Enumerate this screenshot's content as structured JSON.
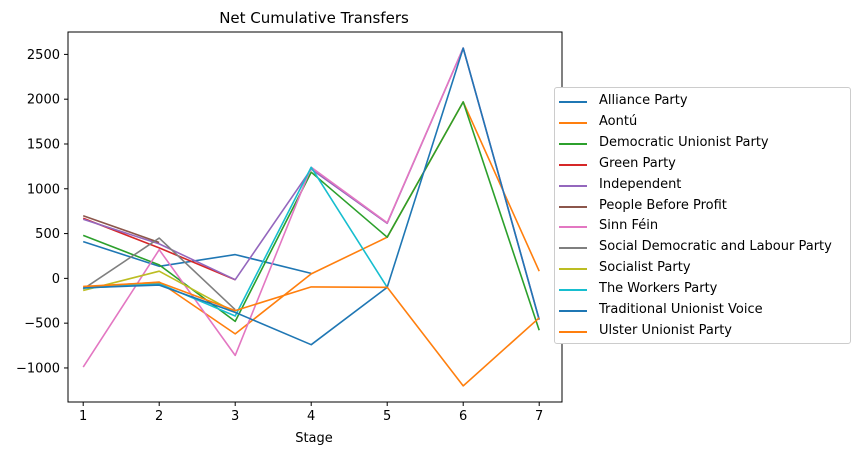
{
  "chart_data": {
    "type": "line",
    "title": "Net Cumulative Transfers",
    "xlabel": "Stage",
    "ylabel": "",
    "x": [
      1,
      2,
      3,
      4,
      5,
      6,
      7
    ],
    "xlim": [
      0.8,
      7.3
    ],
    "ylim": [
      -1380,
      2750
    ],
    "xticks": [
      "1",
      "2",
      "3",
      "4",
      "5",
      "6",
      "7"
    ],
    "yticks": [
      "−1000",
      "−500",
      "0",
      "500",
      "1000",
      "1500",
      "2000",
      "2500"
    ],
    "ytick_values": [
      -1000,
      -500,
      0,
      500,
      1000,
      1500,
      2000,
      2500
    ],
    "legend_position": "center-right-outside",
    "grid": false,
    "series": [
      {
        "name": "Alliance Party",
        "color": "#1f77b4",
        "values": [
          410,
          135,
          265,
          55,
          null,
          null,
          null
        ]
      },
      {
        "name": "Aontú",
        "color": "#ff7f0e",
        "values": [
          -100,
          -40,
          -620,
          50,
          460,
          1970,
          80
        ]
      },
      {
        "name": "Democratic Unionist Party",
        "color": "#2ca02c",
        "values": [
          480,
          150,
          -480,
          1185,
          460,
          1970,
          -580
        ]
      },
      {
        "name": "Green Party",
        "color": "#d62728",
        "values": [
          670,
          340,
          -15,
          null,
          null,
          null,
          null
        ]
      },
      {
        "name": "Independent",
        "color": "#9467bd",
        "values": [
          660,
          385,
          -15,
          1220,
          615,
          2570,
          -460
        ]
      },
      {
        "name": "People Before Profit",
        "color": "#8c564b",
        "values": [
          700,
          400,
          null,
          null,
          null,
          null,
          null
        ]
      },
      {
        "name": "Sinn Féin",
        "color": "#e377c2",
        "values": [
          -990,
          320,
          -860,
          1240,
          620,
          2570,
          -460
        ]
      },
      {
        "name": "Social Democratic and Labour Party",
        "color": "#7f7f7f",
        "values": [
          -120,
          450,
          -350,
          null,
          null,
          null,
          null
        ]
      },
      {
        "name": "Socialist Party",
        "color": "#bcbd22",
        "values": [
          -135,
          80,
          -380,
          null,
          null,
          null,
          null
        ]
      },
      {
        "name": "The Workers Party",
        "color": "#17becf",
        "values": [
          -110,
          -60,
          -420,
          1240,
          -100,
          null,
          null
        ]
      },
      {
        "name": "Traditional Unionist Voice",
        "color": "#1f77b4",
        "values": [
          -105,
          -75,
          -380,
          -740,
          -100,
          2570,
          -460
        ]
      },
      {
        "name": "Ulster Unionist Party",
        "color": "#ff7f0e",
        "values": [
          -90,
          -45,
          -360,
          -95,
          -100,
          -1200,
          -440
        ]
      }
    ]
  }
}
